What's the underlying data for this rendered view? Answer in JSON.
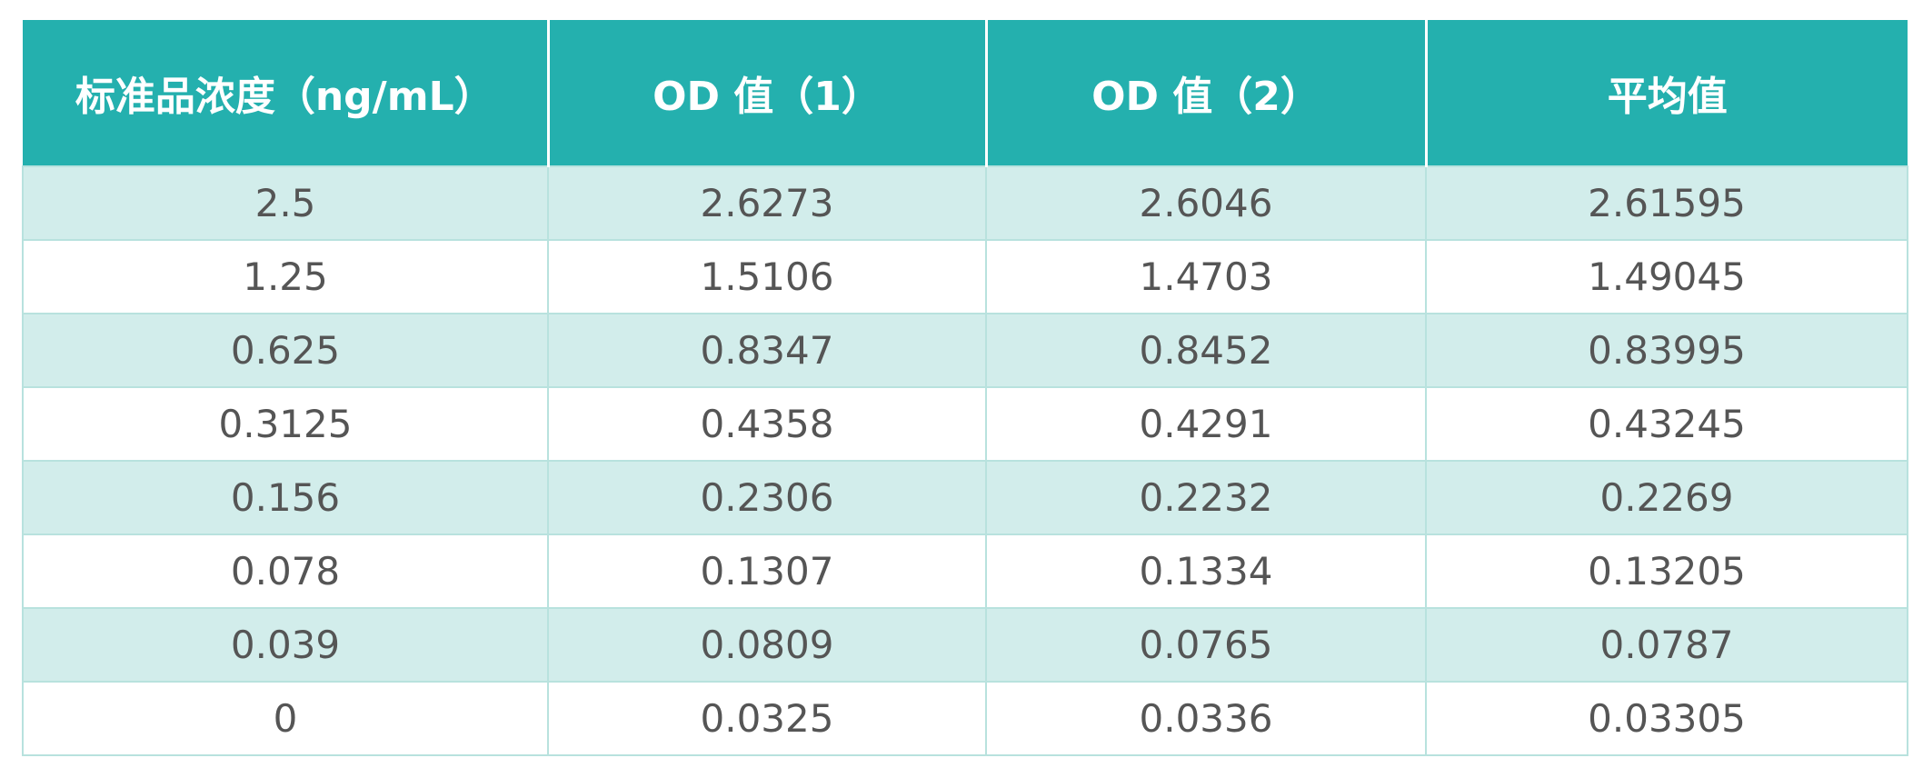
{
  "table": {
    "headers": [
      "标准品浓度（ng/mL）",
      "OD 值（1）",
      "OD 值（2）",
      "平均值"
    ],
    "rows": [
      [
        "2.5",
        "2.6273",
        "2.6046",
        "2.61595"
      ],
      [
        "1.25",
        "1.5106",
        "1.4703",
        "1.49045"
      ],
      [
        "0.625",
        "0.8347",
        "0.8452",
        "0.83995"
      ],
      [
        "0.3125",
        "0.4358",
        "0.4291",
        "0.43245"
      ],
      [
        "0.156",
        "0.2306",
        "0.2232",
        "0.2269"
      ],
      [
        "0.078",
        "0.1307",
        "0.1334",
        "0.13205"
      ],
      [
        "0.039",
        "0.0809",
        "0.0765",
        "0.0787"
      ],
      [
        "0",
        "0.0325",
        "0.0336",
        "0.03305"
      ]
    ],
    "colors": {
      "header_bg": "#24b0ae",
      "header_text": "#ffffff",
      "row_tint": "#d2edeb",
      "row_plain": "#ffffff",
      "grid": "#b8e2de",
      "cell_text": "#555555"
    }
  }
}
